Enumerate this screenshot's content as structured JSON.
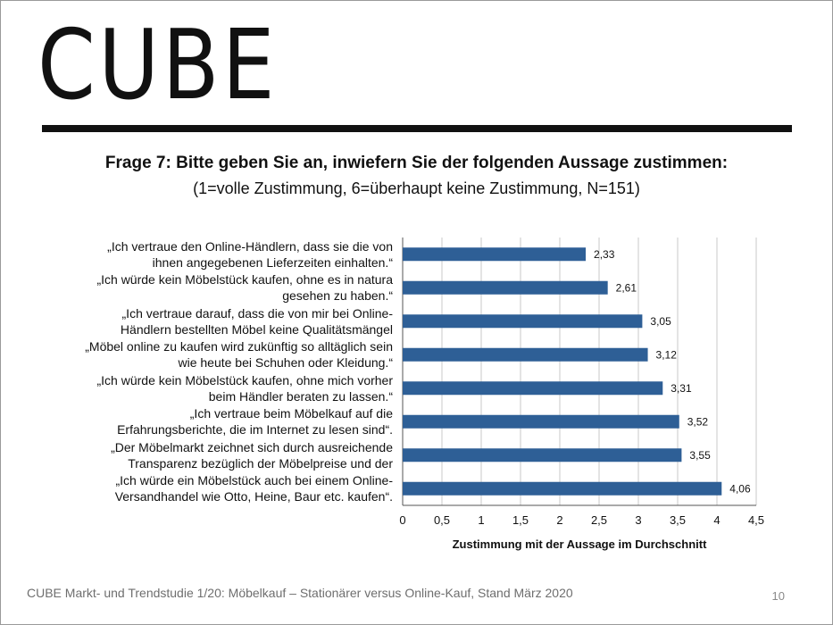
{
  "slide": {
    "logo": "CUBE",
    "title": "Frage 7: Bitte geben Sie an, inwiefern Sie der folgenden Aussage zustimmen:",
    "subtitle": "(1=volle Zustimmung, 6=überhaupt keine Zustimmung, N=151)",
    "footer": "CUBE Markt- und Trendstudie 1/20: Möbelkauf – Stationärer versus Online-Kauf, Stand März 2020",
    "page_number": "10"
  },
  "colors": {
    "bar": "#2e5f96",
    "grid": "#c8c8c8",
    "axis": "#555555"
  },
  "chart_data": {
    "type": "bar",
    "orientation": "horizontal",
    "categories": [
      "„Ich vertraue den Online-Händlern, dass sie die von ihnen angegebenen Lieferzeiten einhalten.“",
      "„Ich würde kein Möbelstück kaufen, ohne es in natura gesehen zu haben.“",
      "„Ich vertraue darauf, dass die von mir bei Online-Händlern bestellten Möbel keine Qualitätsmängel",
      "„Möbel online zu kaufen wird zukünftig so alltäglich sein wie heute bei Schuhen oder Kleidung.“",
      "„Ich würde kein Möbelstück kaufen, ohne mich vorher beim Händler beraten zu lassen.“",
      "„Ich vertraue beim Möbelkauf auf die Erfahrungsberichte, die im Internet zu lesen sind“.",
      "„Der Möbelmarkt zeichnet sich durch ausreichende Transparenz bezüglich der Möbelpreise und der",
      "„Ich würde ein Möbelstück auch bei einem Online-Versandhandel wie Otto, Heine, Baur etc. kaufen“."
    ],
    "category_lines": [
      [
        "„Ich vertraue den Online-Händlern, dass sie die von",
        "ihnen angegebenen Lieferzeiten einhalten.“"
      ],
      [
        "„Ich würde kein Möbelstück kaufen, ohne es in natura",
        "gesehen zu haben.“"
      ],
      [
        "„Ich vertraue darauf, dass die von mir bei Online-",
        "Händlern bestellten Möbel keine Qualitätsmängel"
      ],
      [
        "„Möbel online zu kaufen wird zukünftig so alltäglich sein",
        "wie heute bei Schuhen oder Kleidung.“"
      ],
      [
        "„Ich würde kein Möbelstück kaufen, ohne mich vorher",
        "beim Händler beraten zu lassen.“"
      ],
      [
        "„Ich vertraue beim Möbelkauf auf die",
        "Erfahrungsberichte, die im Internet zu lesen sind“."
      ],
      [
        "„Der Möbelmarkt zeichnet sich durch ausreichende",
        "Transparenz bezüglich der Möbelpreise und der"
      ],
      [
        "„Ich würde ein Möbelstück auch bei einem Online-",
        "Versandhandel wie Otto, Heine, Baur etc. kaufen“."
      ]
    ],
    "values": [
      2.33,
      2.61,
      3.05,
      3.12,
      3.31,
      3.52,
      3.55,
      4.06
    ],
    "value_labels": [
      "2,33",
      "2,61",
      "3,05",
      "3,12",
      "3,31",
      "3,52",
      "3,55",
      "4,06"
    ],
    "xlim": [
      0,
      4.5
    ],
    "xticks": [
      0,
      0.5,
      1,
      1.5,
      2,
      2.5,
      3,
      3.5,
      4,
      4.5
    ],
    "xtick_labels": [
      "0",
      "0,5",
      "1",
      "1,5",
      "2",
      "2,5",
      "3",
      "3,5",
      "4",
      "4,5"
    ],
    "xlabel": "Zustimmung mit der Aussage im Durchschnitt",
    "ylabel": "",
    "grid": true,
    "legend": "none"
  }
}
